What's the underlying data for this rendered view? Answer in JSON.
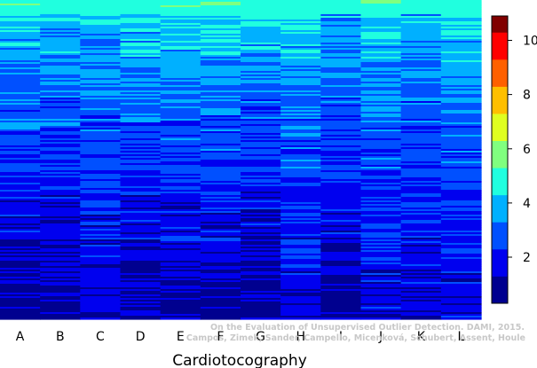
{
  "chart_data": {
    "type": "heatmap",
    "title": "",
    "xlabel": "Cardiotocography",
    "ylabel": "",
    "categories": [
      "A",
      "B",
      "C",
      "D",
      "E",
      "F",
      "G",
      "H",
      "I",
      "J",
      "K",
      "L"
    ],
    "value_range": [
      0.3,
      10.9
    ],
    "colorbar": {
      "ticks": [
        2,
        4,
        6,
        8,
        10
      ],
      "bins": [
        {
          "low": 0.3,
          "high": 1.3,
          "color": "#00008f"
        },
        {
          "low": 1.3,
          "high": 2.3,
          "color": "#0000ef"
        },
        {
          "low": 2.3,
          "high": 3.3,
          "color": "#0050ff"
        },
        {
          "low": 3.3,
          "high": 4.3,
          "color": "#00b0ff"
        },
        {
          "low": 4.3,
          "high": 5.3,
          "color": "#20ffdf"
        },
        {
          "low": 5.3,
          "high": 6.3,
          "color": "#80ff7f"
        },
        {
          "low": 6.3,
          "high": 7.3,
          "color": "#dfff20"
        },
        {
          "low": 7.3,
          "high": 8.3,
          "color": "#ffbf00"
        },
        {
          "low": 8.3,
          "high": 9.3,
          "color": "#ff6000"
        },
        {
          "low": 9.3,
          "high": 10.3,
          "color": "#ff0000"
        },
        {
          "low": 10.3,
          "high": 10.9,
          "color": "#800000"
        }
      ]
    },
    "column_profiles": [
      {
        "name": "A",
        "top": 5.0,
        "bottom": 0.8
      },
      {
        "name": "B",
        "top": 4.9,
        "bottom": 0.8
      },
      {
        "name": "C",
        "top": 4.4,
        "bottom": 1.3
      },
      {
        "name": "D",
        "top": 4.9,
        "bottom": 0.9
      },
      {
        "name": "E",
        "top": 5.0,
        "bottom": 0.9
      },
      {
        "name": "F",
        "top": 5.0,
        "bottom": 1.0
      },
      {
        "name": "G",
        "top": 4.9,
        "bottom": 0.7
      },
      {
        "name": "H",
        "top": 4.8,
        "bottom": 1.5
      },
      {
        "name": "I",
        "top": 4.4,
        "bottom": 0.9
      },
      {
        "name": "J",
        "top": 4.7,
        "bottom": 1.6
      },
      {
        "name": "K",
        "top": 4.4,
        "bottom": 1.3
      },
      {
        "name": "L",
        "top": 4.8,
        "bottom": 1.5
      }
    ]
  },
  "credit": {
    "line1": "On the Evaluation of Unsupervised Outlier Detection. DAMI, 2015.",
    "line2": "Campos, Zimek, Sander, Campello, Micenková, Schubert, Assent, Houle"
  }
}
